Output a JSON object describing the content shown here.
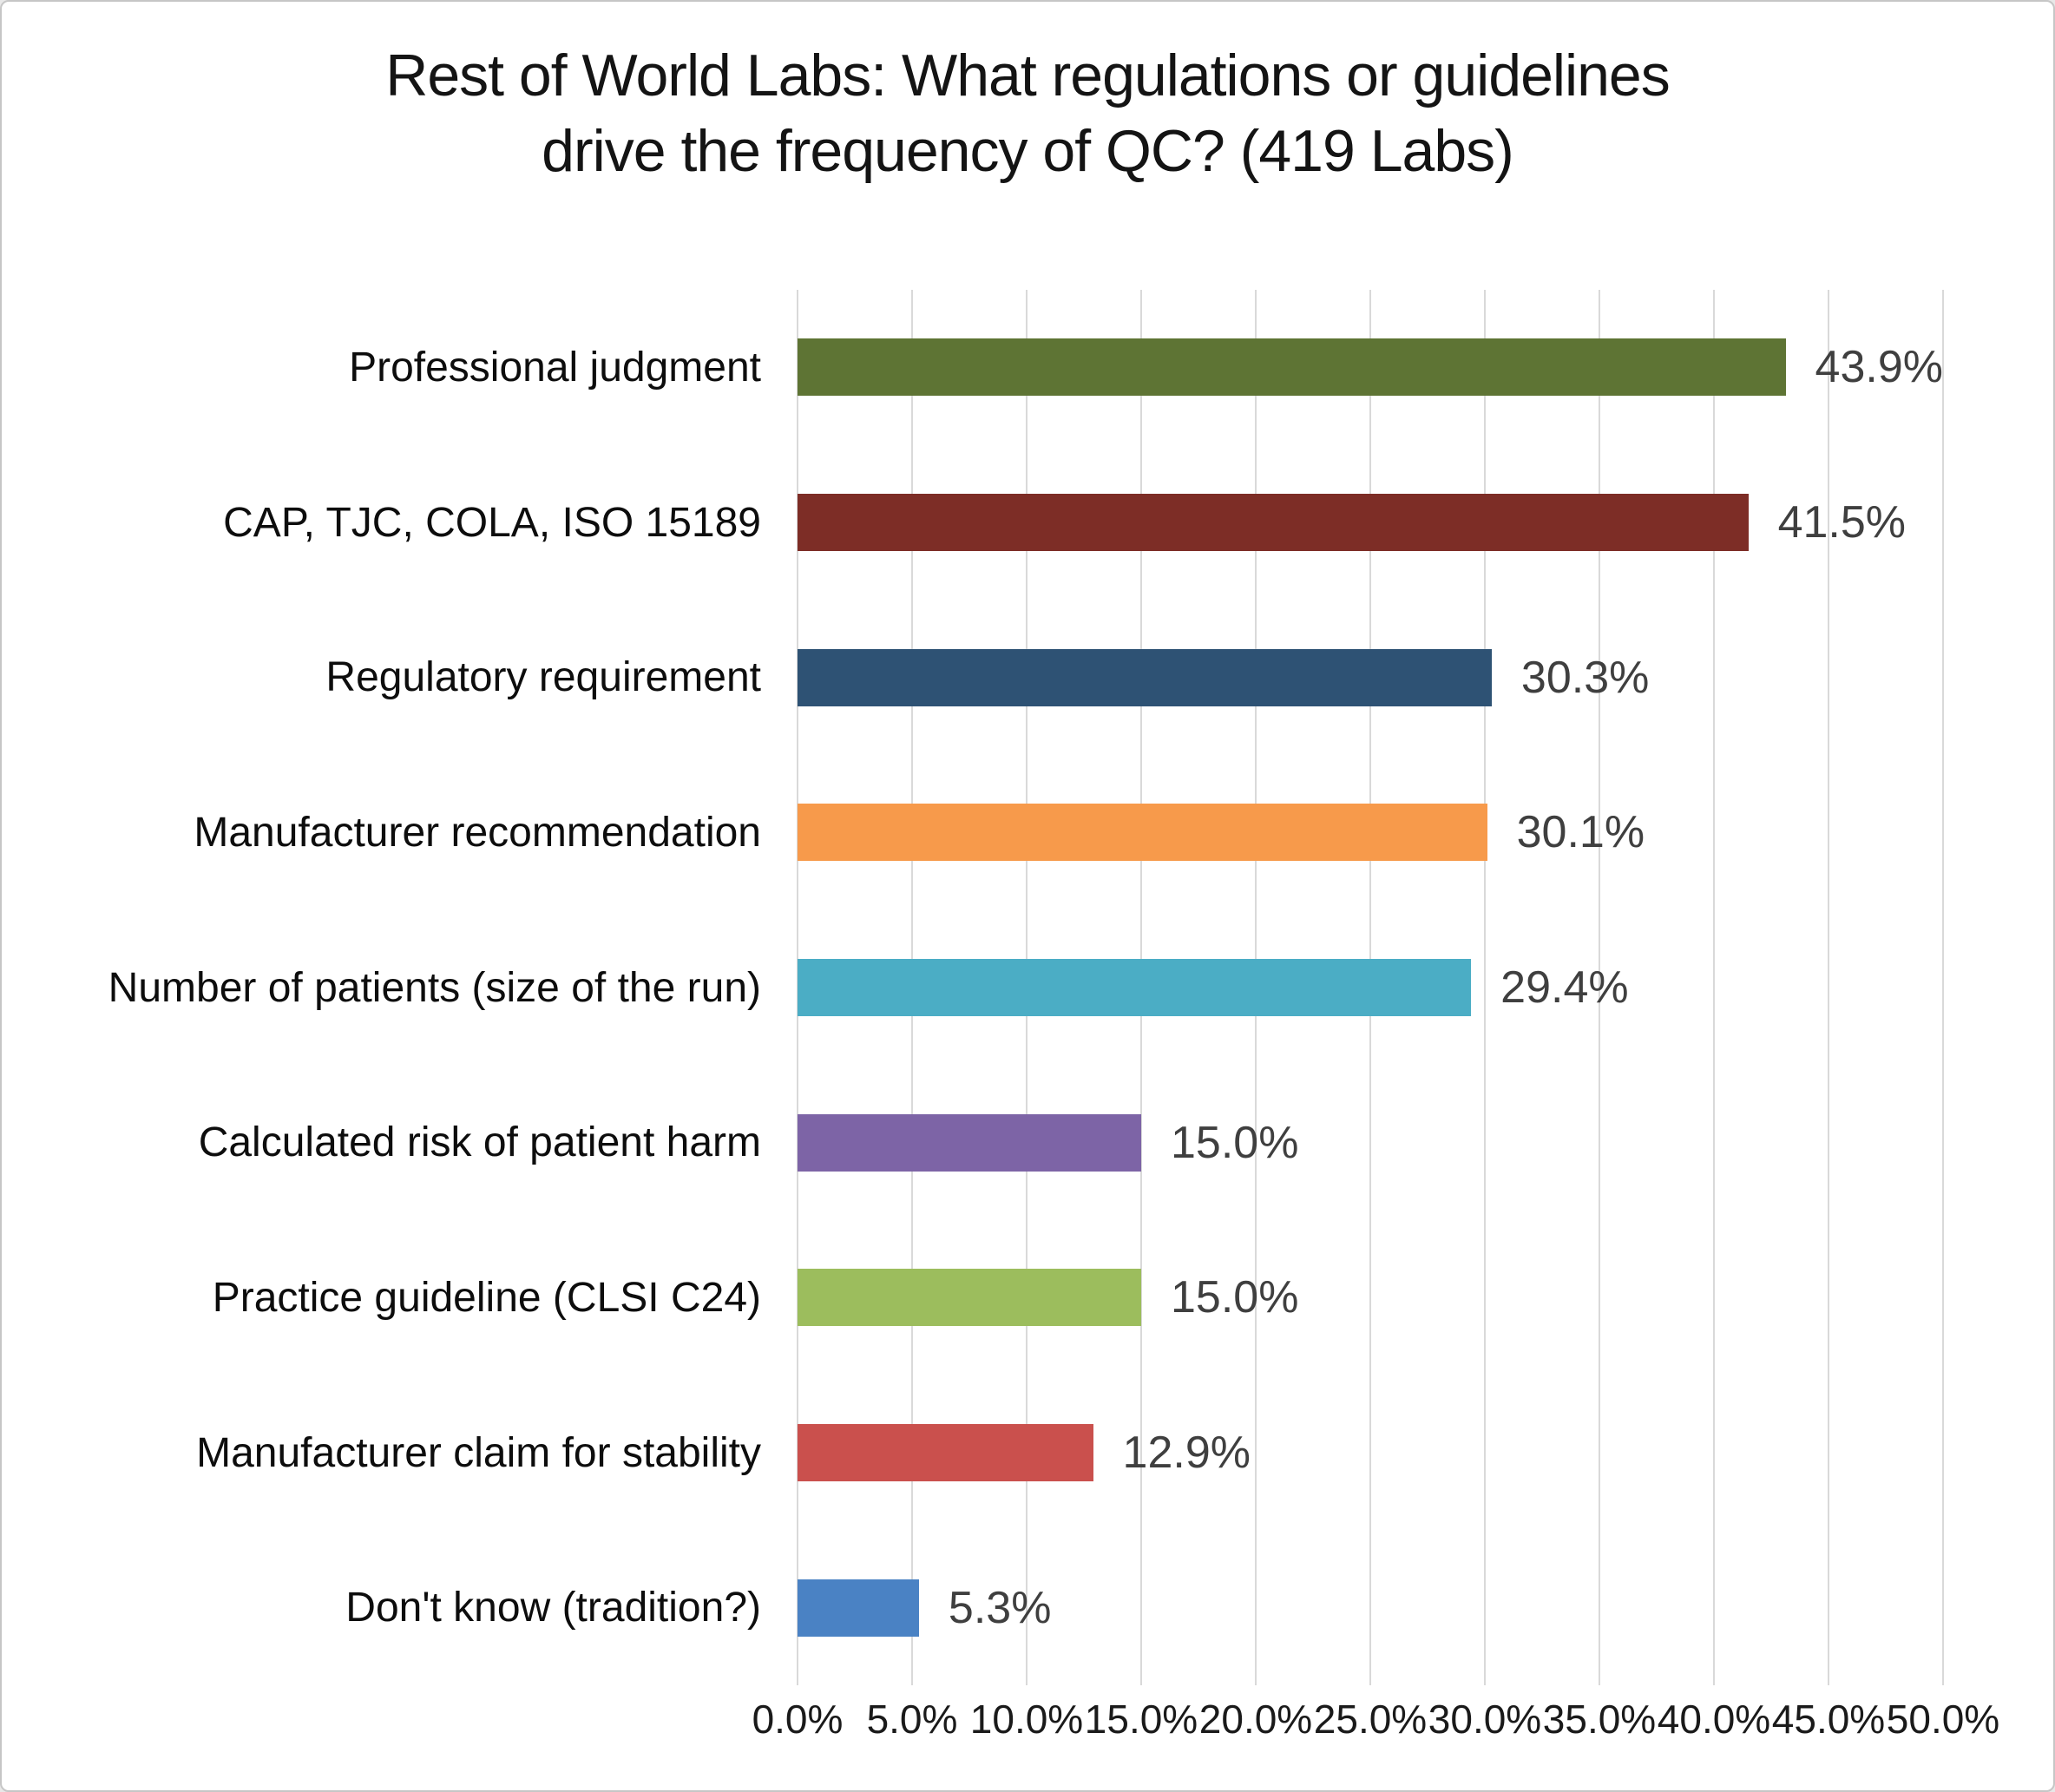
{
  "title": {
    "line1": "Rest of World Labs: What regulations or guidelines",
    "line2": "drive the frequency of QC? (419 Labs)"
  },
  "chart_data": {
    "type": "bar",
    "orientation": "horizontal",
    "title": "Rest of World Labs: What regulations or guidelines drive the frequency of QC? (419 Labs)",
    "xlabel": "",
    "ylabel": "",
    "xlim": [
      0,
      50
    ],
    "x_ticks": [
      "0.0%",
      "5.0%",
      "10.0%",
      "15.0%",
      "20.0%",
      "25.0%",
      "30.0%",
      "35.0%",
      "40.0%",
      "45.0%",
      "50.0%"
    ],
    "grid": "vertical-gridlines-on",
    "legend": "none",
    "categories": [
      "Professional judgment",
      "CAP, TJC, COLA, ISO 15189",
      "Regulatory requirement",
      "Manufacturer recommendation",
      "Number of patients (size of the run)",
      "Calculated risk of patient harm",
      "Practice guideline (CLSI C24)",
      "Manufacturer claim for stability",
      "Don't know (tradition?)"
    ],
    "values": [
      43.9,
      41.5,
      30.3,
      30.1,
      29.4,
      15.0,
      15.0,
      12.9,
      5.3
    ],
    "bars": [
      {
        "label": "Professional judgment",
        "value": 43.9,
        "display_value": "43.9%",
        "color": "#5e7434"
      },
      {
        "label": "CAP, TJC, COLA, ISO 15189",
        "value": 41.5,
        "display_value": "41.5%",
        "color": "#7d2d26"
      },
      {
        "label": "Regulatory requirement",
        "value": 30.3,
        "display_value": "30.3%",
        "color": "#2e5274"
      },
      {
        "label": "Manufacturer recommendation",
        "value": 30.1,
        "display_value": "30.1%",
        "color": "#f79a4b"
      },
      {
        "label": "Number of patients (size of the run)",
        "value": 29.4,
        "display_value": "29.4%",
        "color": "#4badc5"
      },
      {
        "label": "Calculated risk of patient harm",
        "value": 15.0,
        "display_value": "15.0%",
        "color": "#7d64a6"
      },
      {
        "label": "Practice guideline (CLSI C24)",
        "value": 15.0,
        "display_value": "15.0%",
        "color": "#9cbd5d"
      },
      {
        "label": "Manufacturer claim for stability",
        "value": 12.9,
        "display_value": "12.9%",
        "color": "#ca504d"
      },
      {
        "label": "Don't know (tradition?)",
        "value": 5.3,
        "display_value": "5.3%",
        "color": "#4a82c4"
      }
    ],
    "colors": {
      "gridline": "#d9d9d9",
      "value_label_text": "#3f3f3f",
      "category_text": "#0d0d0d",
      "title_text": "#141414"
    }
  }
}
